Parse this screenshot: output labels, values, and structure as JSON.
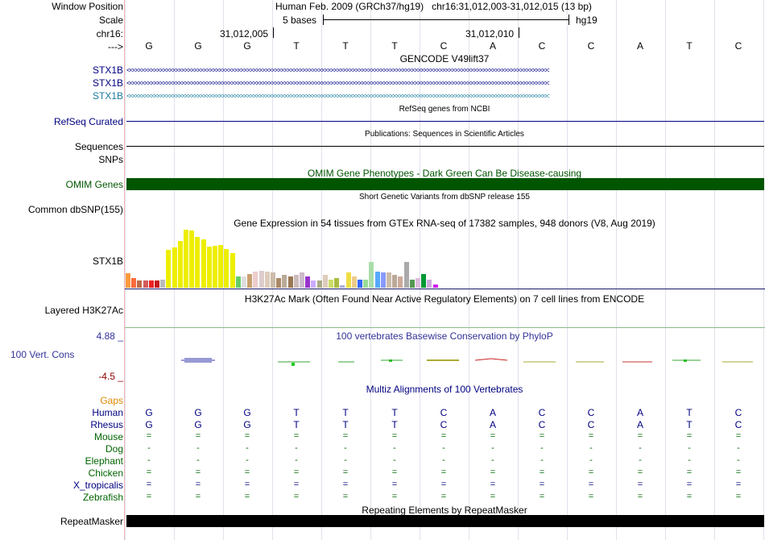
{
  "header": {
    "window_position_label": "Window Position",
    "window_position_value": "Human Feb. 2009 (GRCh37/hg19)   chr16:31,012,003-31,012,015 (13 bp)",
    "scale_label": "Scale",
    "scale_value": "5 bases",
    "scale_assembly": "hg19",
    "chrom_label": "chr16:",
    "coord_1": "31,012,005",
    "coord_2": "31,012,010",
    "strand_label": "--->",
    "bases": [
      "G",
      "G",
      "G",
      "T",
      "T",
      "T",
      "C",
      "A",
      "C",
      "C",
      "A",
      "T",
      "C"
    ]
  },
  "tracks": {
    "gencode_title": "GENCODE V49lift37",
    "gencode_rows": [
      {
        "label": "STX1B",
        "arrows": "<<<<<<<<<<<<<<<<<<<<<<<<<<<<<<<<<<<<<<<<<<<<<<<<<<<<<<<<<<<<<<<<<<<<<<<<<<<<<<<<<<<<<<<<<<<<<<<<<<<<<<<<<<<<<<<<<<<<<<<<<<<<<<<<<<<<<<<<",
        "color": "#000080"
      },
      {
        "label": "STX1B",
        "arrows": "<<<<<<<<<<<<<<<<<<<<<<<<<<<<<<<<<<<<<<<<<<<<<<<<<<<<<<<<<<<<<<<<<<<<<<<<<<<<<<<<<<<<<<<<<<<<<<<<<<<<<<<<<<<<<<<<<<<<<<<<<<<<<<<<<<<<<<<<",
        "color": "#000080"
      },
      {
        "label": "STX1B",
        "arrows": "<<<<<<<<<<<<<<<<<<<<<<<<<<<<<<<<<<<<<<<<<<<<<<<<<<<<<<<<<<<<<<<<<<<<<<<<<<<<<<<<<<<<<<<<<<<<<<<<<<<<<<<<<<<<<<<<<<<<<<<<<<<<<<<<<<<<<<<<",
        "color": "#1a7a9a"
      }
    ],
    "refseq_title": "RefSeq genes from NCBI",
    "refseq_label": "RefSeq Curated",
    "pubs_title": "Publications: Sequences in Scientific Articles",
    "sequences_label": "Sequences",
    "snps_label": "SNPs",
    "omim_title": "OMIM Gene Phenotypes - Dark Green Can Be Disease-causing",
    "omim_label": "OMIM Genes",
    "dbsnp_title": "Short Genetic Variants from dbSNP release 155",
    "dbsnp_label": "Common dbSNP(155)",
    "gtex_title": "Gene Expression in 54 tissues from GTEx RNA-seq of 17382 samples, 948 donors (V8, Aug 2019)",
    "gtex_label": "STX1B",
    "gtex_bars": [
      {
        "v": 0.25,
        "c": "#ff9a3c"
      },
      {
        "v": 0.16,
        "c": "#ff6a3c"
      },
      {
        "v": 0.12,
        "c": "#bf6b47"
      },
      {
        "v": 0.13,
        "c": "#d25a5a"
      },
      {
        "v": 0.12,
        "c": "#ee2222"
      },
      {
        "v": 0.13,
        "c": "#c71a1a"
      },
      {
        "v": 0.14,
        "c": "#bbbbbb"
      },
      {
        "v": 0.65,
        "c": "#eeee00"
      },
      {
        "v": 0.69,
        "c": "#eeee00"
      },
      {
        "v": 0.8,
        "c": "#eeee00"
      },
      {
        "v": 1.0,
        "c": "#eeee00"
      },
      {
        "v": 0.99,
        "c": "#eeee00"
      },
      {
        "v": 0.88,
        "c": "#eeee00"
      },
      {
        "v": 0.83,
        "c": "#eeee00"
      },
      {
        "v": 0.71,
        "c": "#eeee00"
      },
      {
        "v": 0.72,
        "c": "#eeee00"
      },
      {
        "v": 0.74,
        "c": "#eeee00"
      },
      {
        "v": 0.67,
        "c": "#eeee00"
      },
      {
        "v": 0.6,
        "c": "#eeee00"
      },
      {
        "v": 0.2,
        "c": "#66cc66"
      },
      {
        "v": 0.19,
        "c": "#dddddd"
      },
      {
        "v": 0.24,
        "c": "#c8a070"
      },
      {
        "v": 0.28,
        "c": "#eecccc"
      },
      {
        "v": 0.29,
        "c": "#ddcccc"
      },
      {
        "v": 0.28,
        "c": "#ddccbb"
      },
      {
        "v": 0.26,
        "c": "#ccbbaa"
      },
      {
        "v": 0.17,
        "c": "#aa8866"
      },
      {
        "v": 0.22,
        "c": "#bbaa99"
      },
      {
        "v": 0.19,
        "c": "#997755"
      },
      {
        "v": 0.22,
        "c": "#ccbbbb"
      },
      {
        "v": 0.26,
        "c": "#ccbbcc"
      },
      {
        "v": 0.19,
        "c": "#9933cc"
      },
      {
        "v": 0.13,
        "c": "#ccaaff"
      },
      {
        "v": 0.13,
        "c": "#aaaa88"
      },
      {
        "v": 0.22,
        "c": "#ddccbb"
      },
      {
        "v": 0.14,
        "c": "#ccdd66"
      },
      {
        "v": 0.16,
        "c": "#aabb44"
      },
      {
        "v": 0.04,
        "c": "#aaaadd"
      },
      {
        "v": 0.26,
        "c": "#eedd44"
      },
      {
        "v": 0.2,
        "c": "#eecc88"
      },
      {
        "v": 0.14,
        "c": "#3366ff"
      },
      {
        "v": 0.14,
        "c": "#99dd99"
      },
      {
        "v": 0.44,
        "c": "#aaddaa"
      },
      {
        "v": 0.28,
        "c": "#55aaff"
      },
      {
        "v": 0.26,
        "c": "#8899ff"
      },
      {
        "v": 0.26,
        "c": "#ccbbaa"
      },
      {
        "v": 0.22,
        "c": "#bbaa99"
      },
      {
        "v": 0.2,
        "c": "#ccaa99"
      },
      {
        "v": 0.44,
        "c": "#aaaaaa"
      },
      {
        "v": 0.14,
        "c": "#559955"
      },
      {
        "v": 0.16,
        "c": "#ddbbdd"
      },
      {
        "v": 0.24,
        "c": "#009933"
      },
      {
        "v": 0.14,
        "c": "#ccaadd"
      },
      {
        "v": 0.05,
        "c": "#cc22ee"
      }
    ],
    "h3k27_title": "H3K27Ac Mark (Often Found Near Active Regulatory Elements) on 7 cell lines from ENCODE",
    "h3k27_label": "Layered H3K27Ac",
    "cons_title": "100 vertebrates Basewise Conservation by PhyloP",
    "cons_label": "100 Vert. Cons",
    "cons_max": "4.88 _",
    "cons_min": "-4.5 _",
    "multiz_title": "Multiz Alignments of 100 Vertebrates",
    "multiz_rows": [
      {
        "label": "Gaps",
        "values": [
          "",
          "",
          "",
          "",
          "",
          "",
          "",
          "",
          "",
          "",
          "",
          "",
          ""
        ]
      },
      {
        "label": "Human",
        "values": [
          "G",
          "G",
          "G",
          "T",
          "T",
          "T",
          "C",
          "A",
          "C",
          "C",
          "A",
          "T",
          "C"
        ]
      },
      {
        "label": "Rhesus",
        "values": [
          "G",
          "G",
          "G",
          "T",
          "T",
          "T",
          "C",
          "A",
          "C",
          "C",
          "A",
          "T",
          "C"
        ]
      },
      {
        "label": "Mouse",
        "values": [
          "=",
          "=",
          "=",
          "=",
          "=",
          "=",
          "=",
          "=",
          "=",
          "=",
          "=",
          "=",
          "="
        ]
      },
      {
        "label": "Dog",
        "values": [
          "-",
          "-",
          "-",
          "-",
          "-",
          "-",
          "-",
          "-",
          "-",
          "-",
          "-",
          "-",
          "-"
        ]
      },
      {
        "label": "Elephant",
        "values": [
          "-",
          "-",
          "-",
          "-",
          "-",
          "-",
          "-",
          "-",
          "-",
          "-",
          "-",
          "-",
          "-"
        ]
      },
      {
        "label": "Chicken",
        "values": [
          "=",
          "=",
          "=",
          "=",
          "=",
          "=",
          "=",
          "=",
          "=",
          "=",
          "=",
          "=",
          "="
        ]
      },
      {
        "label": "X_tropicalis",
        "values": [
          "=",
          "=",
          "=",
          "=",
          "=",
          "=",
          "=",
          "=",
          "=",
          "=",
          "=",
          "=",
          "="
        ]
      },
      {
        "label": "Zebrafish",
        "values": [
          "=",
          "=",
          "=",
          "=",
          "=",
          "=",
          "=",
          "=",
          "=",
          "=",
          "=",
          "=",
          "="
        ]
      }
    ],
    "repeat_title": "Repeating Elements by RepeatMasker",
    "repeat_label": "RepeatMasker"
  },
  "colors": {
    "navy": "#000080",
    "omim_green": "#005500",
    "gaps_orange": "#dd8800",
    "species_green": "#006400",
    "cons_low": "#8b0000"
  }
}
